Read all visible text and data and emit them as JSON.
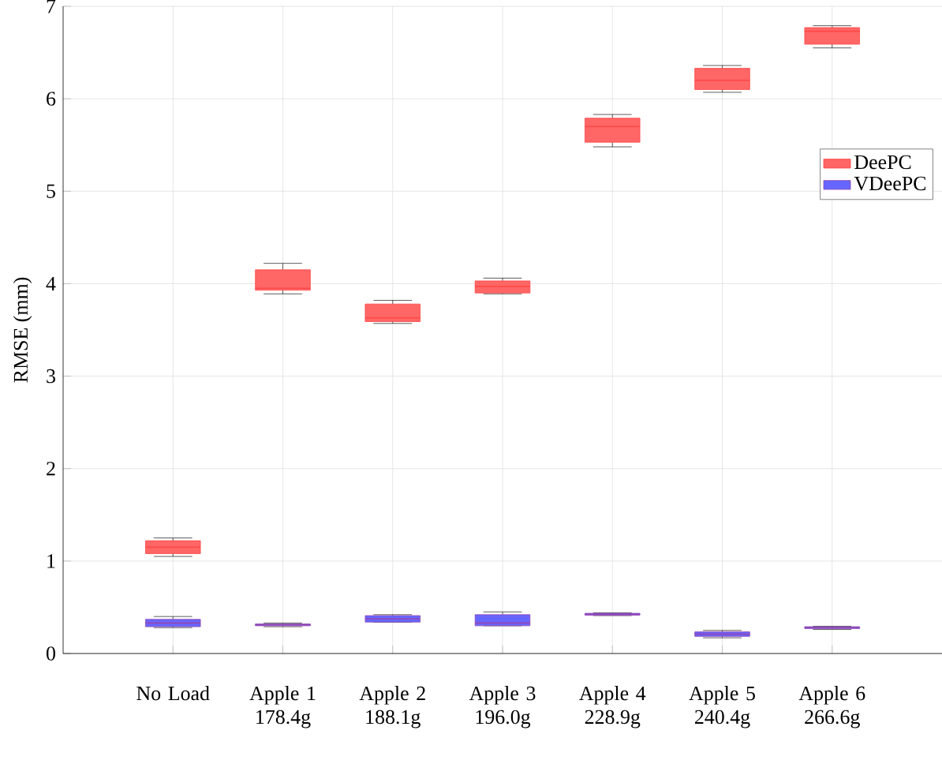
{
  "chart_data": {
    "type": "box",
    "ylabel": "RMSE (mm)",
    "categories": [
      "No Load",
      "Apple 1 178.4g",
      "Apple 2 188.1g",
      "Apple 3 196.0g",
      "Apple 4 228.9g",
      "Apple 5 240.4g",
      "Apple 6 266.6g"
    ],
    "ylim": [
      0,
      7
    ],
    "yticks": [
      0,
      1,
      2,
      3,
      4,
      5,
      6,
      7
    ],
    "grid": true,
    "legend": "right",
    "series": [
      {
        "name": "DeePC",
        "color": "#ff6666",
        "boxes": [
          {
            "low": 1.05,
            "q1": 1.08,
            "median": 1.15,
            "q3": 1.22,
            "high": 1.25
          },
          {
            "low": 3.89,
            "q1": 3.93,
            "median": 3.95,
            "q3": 4.15,
            "high": 4.22
          },
          {
            "low": 3.57,
            "q1": 3.59,
            "median": 3.63,
            "q3": 3.78,
            "high": 3.82
          },
          {
            "low": 3.89,
            "q1": 3.9,
            "median": 3.97,
            "q3": 4.03,
            "high": 4.06
          },
          {
            "low": 5.48,
            "q1": 5.53,
            "median": 5.7,
            "q3": 5.79,
            "high": 5.83
          },
          {
            "low": 6.07,
            "q1": 6.1,
            "median": 6.2,
            "q3": 6.33,
            "high": 6.36
          },
          {
            "low": 6.55,
            "q1": 6.59,
            "median": 6.73,
            "q3": 6.77,
            "high": 6.79
          }
        ]
      },
      {
        "name": "VDeePC",
        "color": "#6666ff",
        "boxes": [
          {
            "low": 0.28,
            "q1": 0.29,
            "median": 0.33,
            "q3": 0.37,
            "high": 0.4
          },
          {
            "low": 0.29,
            "q1": 0.3,
            "median": 0.31,
            "q3": 0.32,
            "high": 0.33
          },
          {
            "low": 0.34,
            "q1": 0.34,
            "median": 0.375,
            "q3": 0.41,
            "high": 0.42
          },
          {
            "low": 0.3,
            "q1": 0.3,
            "median": 0.33,
            "q3": 0.42,
            "high": 0.45
          },
          {
            "low": 0.41,
            "q1": 0.415,
            "median": 0.425,
            "q3": 0.435,
            "high": 0.44
          },
          {
            "low": 0.17,
            "q1": 0.185,
            "median": 0.21,
            "q3": 0.235,
            "high": 0.25
          },
          {
            "low": 0.26,
            "q1": 0.27,
            "median": 0.28,
            "q3": 0.29,
            "high": 0.295
          }
        ]
      }
    ]
  }
}
